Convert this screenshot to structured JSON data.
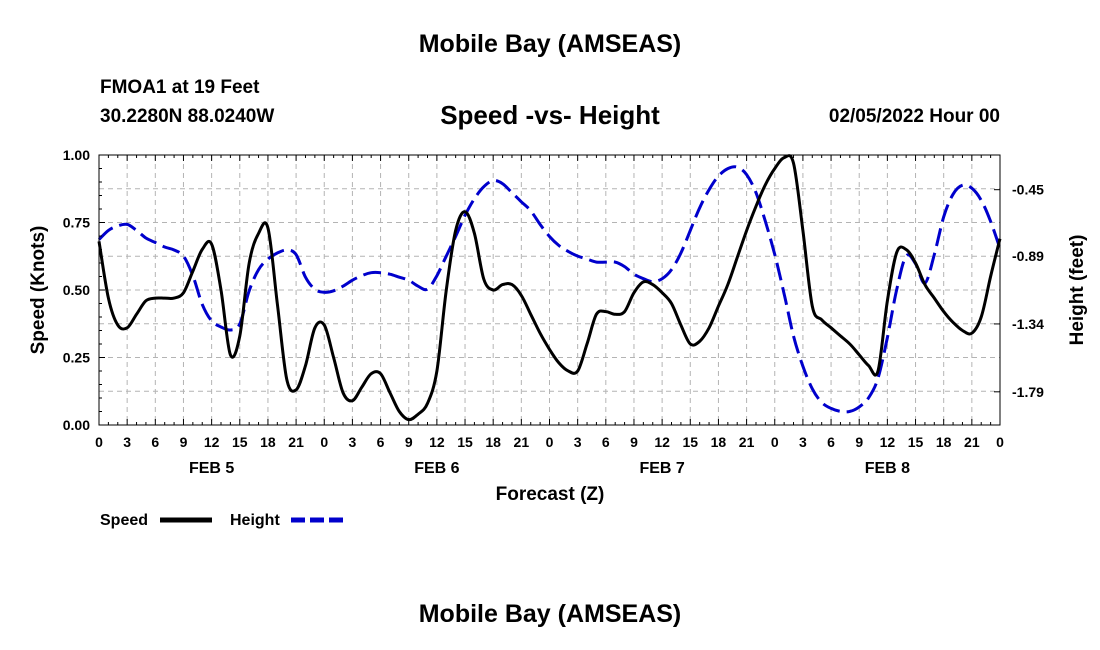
{
  "header": {
    "title": "Mobile Bay (AMSEAS)",
    "station": "FMOA1 at 19 Feet",
    "coords": "30.2280N  88.0240W",
    "chart_title": "Speed -vs- Height",
    "date": "02/05/2022 Hour 00"
  },
  "footer": {
    "title": "Mobile Bay (AMSEAS)"
  },
  "colors": {
    "speed": "#000000",
    "height": "#0000cc",
    "grid": "#b4b4b4"
  },
  "chart_data": {
    "type": "line",
    "title": "Speed -vs- Height",
    "xlabel": "Forecast (Z)",
    "ylabel": "Speed (Knots)",
    "y2label": "Height (feet)",
    "x_unit": "forecast hour",
    "xlim": [
      0,
      96
    ],
    "ylim": [
      0,
      1
    ],
    "y2lim": [
      -2.01,
      -0.22
    ],
    "yticks": [
      "0.00",
      "0.25",
      "0.50",
      "0.75",
      "1.00"
    ],
    "y2ticks": [
      "-0.45",
      "-0.89",
      "-1.34",
      "-1.79"
    ],
    "xtick_labels": [
      "0",
      "3",
      "6",
      "9",
      "12",
      "15",
      "18",
      "21",
      "0",
      "3",
      "6",
      "9",
      "12",
      "15",
      "18",
      "21",
      "0",
      "3",
      "6",
      "9",
      "12",
      "15",
      "18",
      "21",
      "0",
      "3",
      "6",
      "9",
      "12",
      "15",
      "18",
      "21",
      "0"
    ],
    "day_labels": [
      "FEB 5",
      "FEB 6",
      "FEB 7",
      "FEB 8"
    ],
    "grid": true,
    "legend": {
      "position": "bottom-left",
      "entries": [
        "Speed",
        "Height"
      ]
    },
    "series": [
      {
        "name": "Speed",
        "axis": "left",
        "style": "solid",
        "x": [
          0,
          1,
          2,
          3,
          4,
          5,
          6,
          7,
          8,
          9,
          10,
          11,
          12,
          13,
          14,
          15,
          16,
          17,
          18,
          19,
          20,
          21,
          22,
          23,
          24,
          25,
          26,
          27,
          28,
          29,
          30,
          31,
          32,
          33,
          34,
          35,
          36,
          37,
          38,
          39,
          40,
          41,
          42,
          43,
          44,
          45,
          46,
          47,
          48,
          49,
          50,
          51,
          52,
          53,
          54,
          55,
          56,
          57,
          58,
          59,
          60,
          61,
          62,
          63,
          64,
          65,
          66,
          67,
          68,
          69,
          70,
          71,
          72,
          73,
          74,
          75,
          76,
          77,
          78,
          79,
          80,
          81,
          82,
          83,
          84,
          85,
          86,
          87,
          88,
          89,
          90,
          91,
          92,
          93,
          94,
          95,
          96
        ],
        "values": [
          0.68,
          0.47,
          0.37,
          0.36,
          0.41,
          0.46,
          0.47,
          0.47,
          0.47,
          0.49,
          0.57,
          0.65,
          0.67,
          0.5,
          0.26,
          0.33,
          0.6,
          0.71,
          0.73,
          0.45,
          0.17,
          0.13,
          0.22,
          0.36,
          0.37,
          0.25,
          0.12,
          0.09,
          0.14,
          0.19,
          0.19,
          0.12,
          0.05,
          0.02,
          0.04,
          0.08,
          0.2,
          0.5,
          0.72,
          0.79,
          0.71,
          0.54,
          0.5,
          0.52,
          0.52,
          0.48,
          0.41,
          0.34,
          0.28,
          0.23,
          0.2,
          0.2,
          0.3,
          0.41,
          0.42,
          0.41,
          0.42,
          0.49,
          0.53,
          0.52,
          0.49,
          0.45,
          0.37,
          0.3,
          0.31,
          0.36,
          0.44,
          0.52,
          0.62,
          0.72,
          0.81,
          0.89,
          0.95,
          0.99,
          0.97,
          0.72,
          0.44,
          0.39,
          0.36,
          0.33,
          0.3,
          0.26,
          0.22,
          0.2,
          0.46,
          0.64,
          0.65,
          0.6,
          0.52,
          0.47,
          0.42,
          0.38,
          0.35,
          0.34,
          0.4,
          0.55,
          0.69
        ]
      },
      {
        "name": "Height",
        "axis": "right",
        "style": "dashed",
        "x": [
          0,
          1,
          2,
          3,
          4,
          5,
          6,
          7,
          8,
          9,
          10,
          11,
          12,
          13,
          14,
          15,
          16,
          17,
          18,
          19,
          20,
          21,
          22,
          23,
          24,
          25,
          26,
          27,
          28,
          29,
          30,
          31,
          32,
          33,
          34,
          35,
          36,
          37,
          38,
          39,
          40,
          41,
          42,
          43,
          44,
          45,
          46,
          47,
          48,
          49,
          50,
          51,
          52,
          53,
          54,
          55,
          56,
          57,
          58,
          59,
          60,
          61,
          62,
          63,
          64,
          65,
          66,
          67,
          68,
          69,
          70,
          71,
          72,
          73,
          74,
          75,
          76,
          77,
          78,
          79,
          80,
          81,
          82,
          83,
          84,
          85,
          86,
          87,
          88,
          89,
          90,
          91,
          92,
          93,
          94,
          95,
          96
        ],
        "values": [
          -0.78,
          -0.72,
          -0.69,
          -0.68,
          -0.72,
          -0.77,
          -0.8,
          -0.83,
          -0.85,
          -0.89,
          -1.02,
          -1.21,
          -1.32,
          -1.36,
          -1.38,
          -1.34,
          -1.12,
          -0.98,
          -0.91,
          -0.87,
          -0.85,
          -0.88,
          -1.03,
          -1.11,
          -1.13,
          -1.12,
          -1.09,
          -1.05,
          -1.02,
          -1.0,
          -1.0,
          -1.01,
          -1.03,
          -1.05,
          -1.09,
          -1.11,
          -1.02,
          -0.89,
          -0.76,
          -0.62,
          -0.51,
          -0.43,
          -0.39,
          -0.41,
          -0.47,
          -0.53,
          -0.59,
          -0.68,
          -0.76,
          -0.82,
          -0.86,
          -0.89,
          -0.91,
          -0.93,
          -0.93,
          -0.93,
          -0.96,
          -1.01,
          -1.04,
          -1.06,
          -1.04,
          -0.98,
          -0.87,
          -0.72,
          -0.57,
          -0.45,
          -0.36,
          -0.31,
          -0.3,
          -0.35,
          -0.47,
          -0.66,
          -0.88,
          -1.14,
          -1.42,
          -1.62,
          -1.77,
          -1.86,
          -1.9,
          -1.92,
          -1.92,
          -1.89,
          -1.83,
          -1.7,
          -1.43,
          -1.11,
          -0.89,
          -0.94,
          -1.07,
          -0.88,
          -0.63,
          -0.48,
          -0.42,
          -0.44,
          -0.52,
          -0.66,
          -0.84
        ]
      }
    ]
  }
}
